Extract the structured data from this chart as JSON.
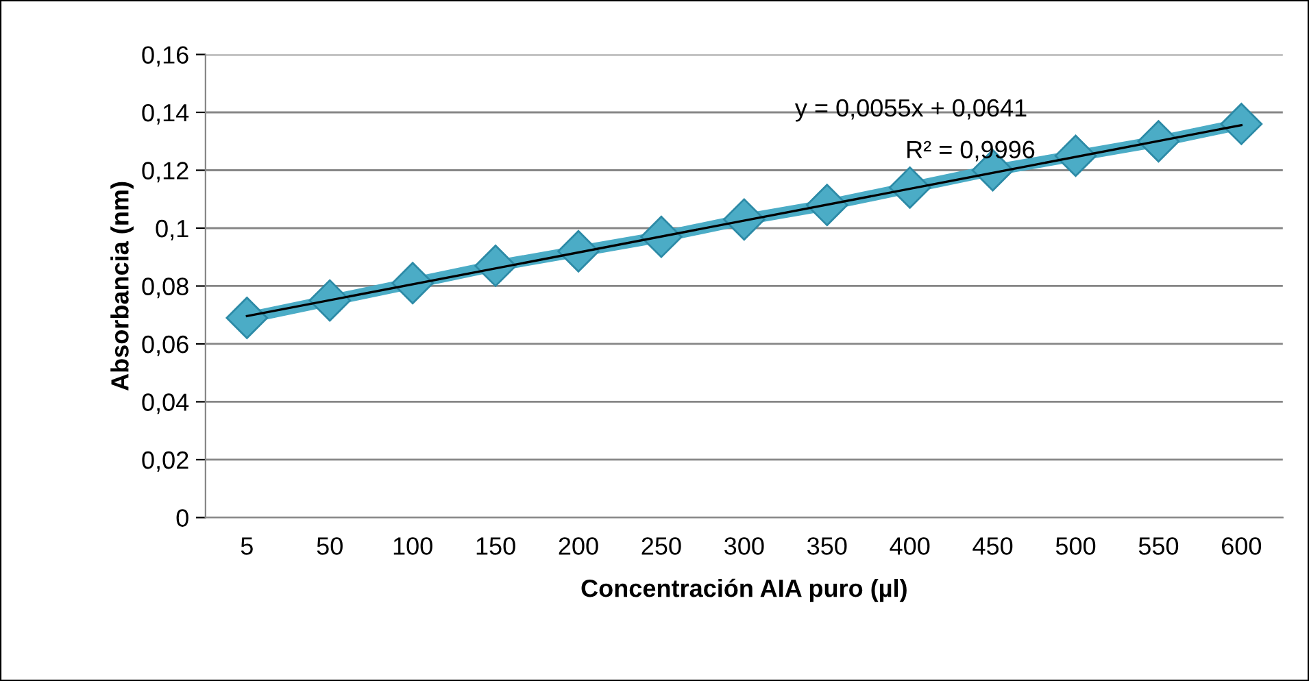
{
  "chart_data": {
    "type": "line",
    "xlabel": "Concentración AIA puro (µl)",
    "ylabel": "Absorbancia (nm)",
    "categories": [
      "5",
      "50",
      "100",
      "150",
      "200",
      "250",
      "300",
      "350",
      "400",
      "450",
      "500",
      "550",
      "600"
    ],
    "series": [
      {
        "color": "#4bacc6",
        "marker": "diamond",
        "values": [
          0.069,
          0.075,
          0.081,
          0.087,
          0.092,
          0.097,
          0.103,
          0.108,
          0.114,
          0.12,
          0.125,
          0.13,
          0.136
        ]
      },
      {
        "type": "line",
        "color": "#000000",
        "marker": "none",
        "values": [
          0.0696,
          null,
          null,
          null,
          null,
          null,
          null,
          null,
          null,
          null,
          null,
          null,
          0.1356
        ]
      }
    ],
    "ylim": [
      0,
      0.16
    ],
    "yticks": [
      0,
      {
        "value": 0.02,
        "label": "0,02"
      },
      {
        "value": 0.04,
        "label": "0,04"
      },
      {
        "value": 0.06,
        "label": "0,06"
      },
      {
        "value": 0.08,
        "label": "0,08"
      },
      {
        "value": 0.1,
        "label": "0,1"
      },
      {
        "value": 0.12,
        "label": "0,12"
      },
      {
        "value": 0.14,
        "label": "0,14"
      },
      {
        "value": 0.16,
        "label": "0,16"
      }
    ],
    "grid": "y",
    "legend": false,
    "annotations": [
      "y = 0,0055x + 0,0641",
      "R² = 0,9996"
    ]
  }
}
